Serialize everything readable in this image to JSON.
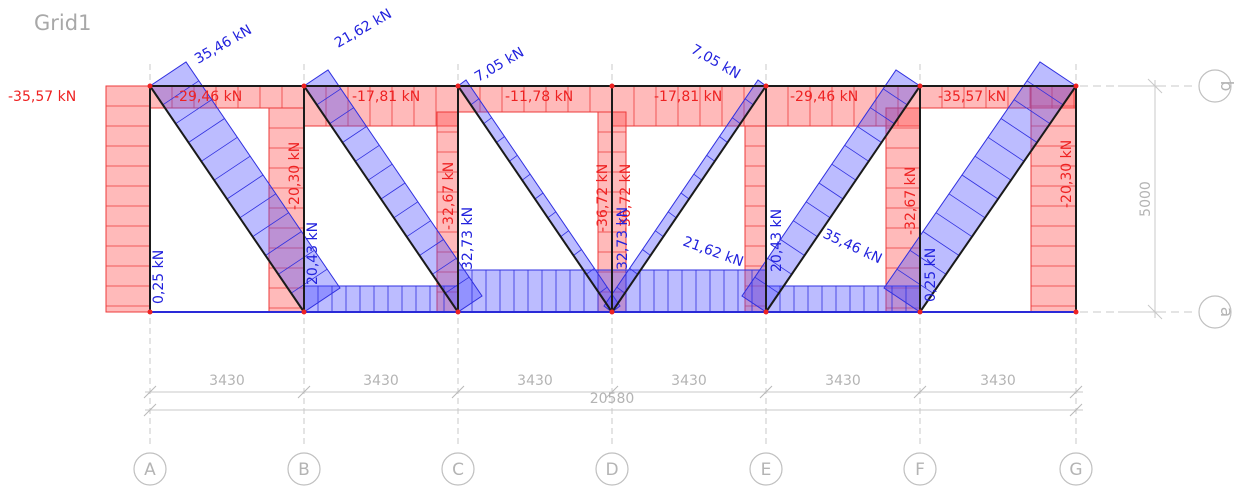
{
  "title": "Grid1",
  "colors": {
    "compression": "#ff4d4d",
    "tension": "#4a4aff",
    "frame": "#1a1a1a",
    "grid": "#bdbdbd",
    "text_red": "#ee2222",
    "text_blue": "#2222dd"
  },
  "grid_columns": [
    "A",
    "B",
    "C",
    "D",
    "E",
    "F",
    "G"
  ],
  "grid_rows": [
    "b",
    "a"
  ],
  "dimensions": {
    "spans": [
      "3430",
      "3430",
      "3430",
      "3430",
      "3430",
      "3430"
    ],
    "total": "20580",
    "height": "5000"
  },
  "force_labels": {
    "top_chord": [
      "-35,57 kN",
      "-29,46 kN",
      "-17,81 kN",
      "-11,78 kN",
      "-17,81 kN",
      "-29,46 kN",
      "-35,57 kN"
    ],
    "verticals": [
      "0,25 kN",
      "-20,30 kN",
      "20,43 kN",
      "-32,67 kN",
      "32,73 kN",
      "-36,72 kN",
      "-36,72 kN",
      "32,73 kN",
      "20,43 kN",
      "-32,67 kN",
      "0,25 kN",
      "-20,30 kN"
    ],
    "diagonals": [
      "35,46 kN",
      "21,62 kN",
      "7,05 kN",
      "7,05 kN",
      "21,62 kN",
      "35,46 kN"
    ]
  }
}
